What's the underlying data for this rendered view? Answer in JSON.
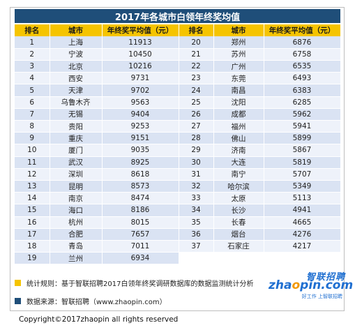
{
  "title": "2017年各城市白领年终奖均值",
  "headers": [
    "排名",
    "城市",
    "年终奖平均值（元）",
    "排名",
    "城市",
    "年终奖平均值（元）"
  ],
  "left_rows": [
    [
      "1",
      "上海",
      "11913"
    ],
    [
      "2",
      "宁波",
      "10450"
    ],
    [
      "3",
      "北京",
      "10216"
    ],
    [
      "4",
      "西安",
      "9731"
    ],
    [
      "5",
      "天津",
      "9702"
    ],
    [
      "6",
      "乌鲁木齐",
      "9563"
    ],
    [
      "7",
      "无锡",
      "9404"
    ],
    [
      "8",
      "贵阳",
      "9253"
    ],
    [
      "9",
      "重庆",
      "9151"
    ],
    [
      "10",
      "厦门",
      "9035"
    ],
    [
      "11",
      "武汉",
      "8925"
    ],
    [
      "12",
      "深圳",
      "8618"
    ],
    [
      "13",
      "昆明",
      "8573"
    ],
    [
      "14",
      "南京",
      "8474"
    ],
    [
      "15",
      "海口",
      "8186"
    ],
    [
      "16",
      "杭州",
      "8015"
    ],
    [
      "17",
      "合肥",
      "7657"
    ],
    [
      "18",
      "青岛",
      "7011"
    ],
    [
      "19",
      "兰州",
      "6934"
    ]
  ],
  "right_rows": [
    [
      "20",
      "郑州",
      "6876"
    ],
    [
      "21",
      "苏州",
      "6758"
    ],
    [
      "22",
      "广州",
      "6535"
    ],
    [
      "23",
      "东莞",
      "6493"
    ],
    [
      "24",
      "南昌",
      "6383"
    ],
    [
      "25",
      "沈阳",
      "6285"
    ],
    [
      "26",
      "成都",
      "5962"
    ],
    [
      "27",
      "福州",
      "5941"
    ],
    [
      "28",
      "佛山",
      "5899"
    ],
    [
      "29",
      "济南",
      "5867"
    ],
    [
      "30",
      "大连",
      "5819"
    ],
    [
      "31",
      "南宁",
      "5707"
    ],
    [
      "32",
      "哈尔滨",
      "5349"
    ],
    [
      "33",
      "太原",
      "5113"
    ],
    [
      "34",
      "长沙",
      "4941"
    ],
    [
      "35",
      "长春",
      "4665"
    ],
    [
      "36",
      "烟台",
      "4276"
    ],
    [
      "37",
      "石家庄",
      "4217"
    ]
  ],
  "notes": {
    "rule": "统计规则：基于智联招聘2017白领年终奖调研数据库的数据监测统计分析",
    "source": "数据来源：智联招聘（www.zhaopin.com）"
  },
  "logo": {
    "cn": "智联招聘",
    "en_prefix": "zha",
    "en_o": "o",
    "en_suffix": "pin.com",
    "tagline": "好工作 上智联招聘"
  },
  "copyright": "Copyright©2017zhaopin all rights reserved",
  "colors": {
    "title_bg": "#1f4e79",
    "header_bg": "#f5c400",
    "row_odd": "#dae3f3",
    "row_even": "#eef2fa",
    "note_rule_marker": "#f5c400",
    "note_source_marker": "#1f4e79",
    "logo_blue": "#1f6fd1",
    "logo_orange": "#f39800"
  }
}
